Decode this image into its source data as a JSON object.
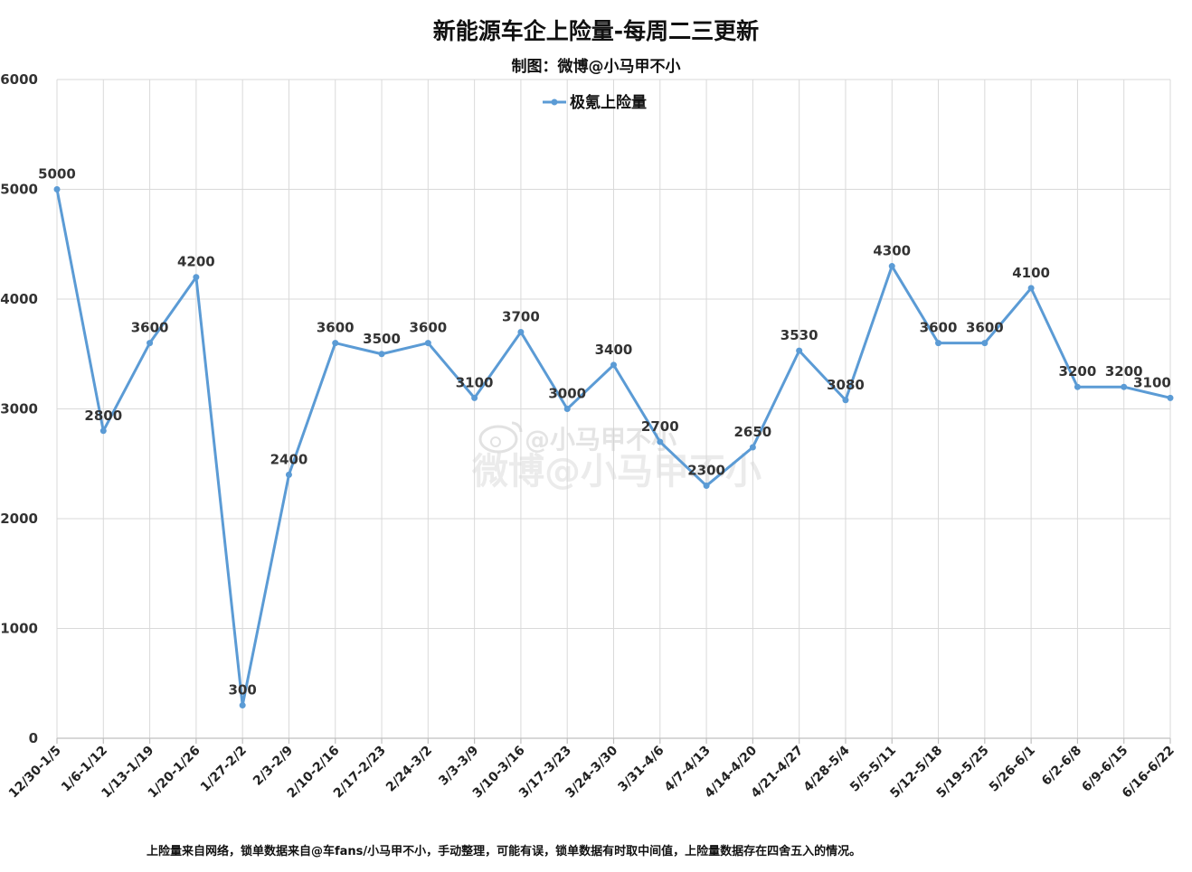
{
  "chart_data": {
    "type": "line",
    "title": "新能源车企上险量-每周二三更新",
    "subtitle": "制图：微博@小马甲不小",
    "legend": "top-center",
    "grid": true,
    "ylim": [
      0,
      6000
    ],
    "yticks": [
      0,
      1000,
      2000,
      3000,
      4000,
      5000,
      6000
    ],
    "categories": [
      "12/30-1/5",
      "1/6-1/12",
      "1/13-1/19",
      "1/20-1/26",
      "1/27-2/2",
      "2/3-2/9",
      "2/10-2/16",
      "2/17-2/23",
      "2/24-3/2",
      "3/3-3/9",
      "3/10-3/16",
      "3/17-3/23",
      "3/24-3/30",
      "3/31-4/6",
      "4/7-4/13",
      "4/14-4/20",
      "4/21-4/27",
      "4/28-5/4",
      "5/5-5/11",
      "5/12-5/18",
      "5/19-5/25",
      "5/26-6/1",
      "6/2-6/8",
      "6/9-6/15",
      "6/16-6/22"
    ],
    "series": [
      {
        "name": "极氪上险量",
        "color": "#5b9bd5",
        "values": [
          5000,
          2800,
          3600,
          4200,
          300,
          2400,
          3600,
          3500,
          3600,
          3100,
          3700,
          3000,
          3400,
          2700,
          2300,
          2650,
          3530,
          3080,
          4300,
          3600,
          3600,
          4100,
          3200,
          3200,
          3100
        ]
      }
    ],
    "footnote": "上险量来自网络，锁单数据来自@车fans/小马甲不小，手动整理，可能有误，锁单数据有时取中间值，上险量数据存在四舍五入的情况。",
    "watermark": {
      "line1": "@小马甲不小",
      "line2": "微博@小马甲不小"
    },
    "colors": {
      "line": "#5b9bd5",
      "grid": "#d9d9d9",
      "axis": "#bfbfbf"
    }
  }
}
